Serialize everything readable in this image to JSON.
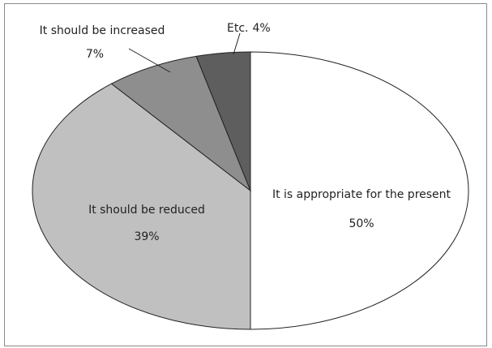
{
  "chart_data": {
    "type": "pie",
    "slices": [
      {
        "label": "It is appropriate for the present",
        "value_label": "50%",
        "value": 50,
        "color": "#ffffff"
      },
      {
        "label": "It should be reduced",
        "value_label": "39%",
        "value": 39,
        "color": "#c0c0c0"
      },
      {
        "label": "It should be increased",
        "value_label": "7%",
        "value": 7,
        "color": "#8e8e8e"
      },
      {
        "label": "Etc.",
        "value_label": "4%",
        "value": 4,
        "color": "#5e5e5e"
      }
    ],
    "legend": "none"
  }
}
